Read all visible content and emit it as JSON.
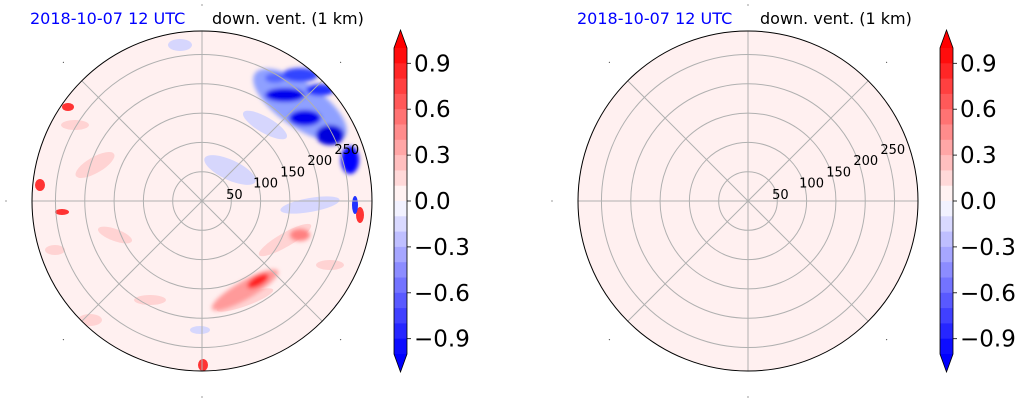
{
  "chart_data": [
    {
      "type": "heatmap",
      "projection": "polar",
      "title_left": "2018-10-07 12 UTC",
      "title_left_color": "#0000ff",
      "title_right": "down. vent. (1 km)",
      "radial_ticks": [
        50,
        100,
        150,
        200,
        250
      ],
      "rlim": [
        0,
        290
      ],
      "angular_grid_deg": [
        0,
        45,
        90,
        135,
        180,
        225,
        270,
        315
      ],
      "grid": true,
      "background_color": "#fff0f0",
      "colorbar": {
        "vmin": -1.0,
        "vmax": 1.0,
        "levels": 20,
        "extend": "both",
        "cmap": "bwr",
        "ticks": [
          "0.9",
          "0.6",
          "0.3",
          "0.0",
          "−0.3",
          "−0.6",
          "−0.9"
        ]
      },
      "features": [
        {
          "name": "strong negative band",
          "sign": "negative",
          "magnitude": 0.9,
          "theta_deg": 45,
          "r": 230
        },
        {
          "name": "weak negative band",
          "sign": "negative",
          "magnitude": 0.3,
          "theta_deg": 25,
          "r": 110
        },
        {
          "name": "positive streak",
          "sign": "positive",
          "magnitude": 0.9,
          "theta_deg": -55,
          "r": 140
        },
        {
          "name": "edge positive patches",
          "sign": "positive",
          "magnitude": 0.9,
          "theta_deg": 175,
          "r": 270
        }
      ]
    },
    {
      "type": "heatmap",
      "projection": "polar",
      "title_left": "2018-10-07 12 UTC",
      "title_left_color": "#0000ff",
      "title_right": "down. vent. (1 km)",
      "radial_ticks": [
        50,
        100,
        150,
        200,
        250
      ],
      "rlim": [
        0,
        290
      ],
      "angular_grid_deg": [
        0,
        45,
        90,
        135,
        180,
        225,
        270,
        315
      ],
      "grid": true,
      "background_color": "#fff0f0",
      "colorbar": {
        "vmin": -1.0,
        "vmax": 1.0,
        "levels": 20,
        "extend": "both",
        "cmap": "bwr",
        "ticks": [
          "0.9",
          "0.6",
          "0.3",
          "0.0",
          "−0.3",
          "−0.6",
          "−0.9"
        ]
      },
      "features": []
    }
  ]
}
